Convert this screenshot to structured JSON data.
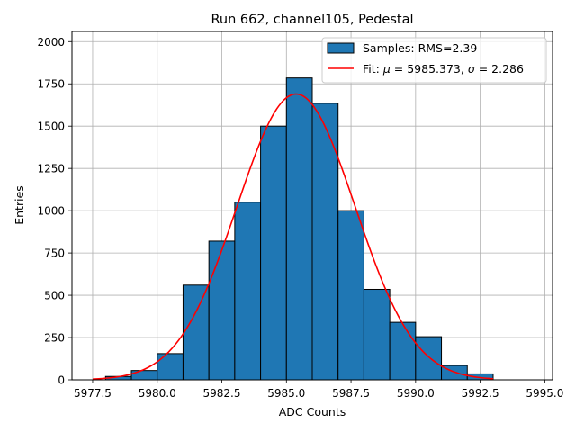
{
  "chart_data": {
    "type": "bar",
    "title": "Run 662, channel105, Pedestal",
    "xlabel": "ADC Counts",
    "ylabel": "Entries",
    "xlim": [
      5976.7,
      5995.3
    ],
    "ylim": [
      0,
      2060
    ],
    "grid": true,
    "legend_position": "upper right",
    "x_ticks": [
      "5977.5",
      "5980.0",
      "5982.5",
      "5985.0",
      "5987.5",
      "5990.0",
      "5992.5",
      "5995.0"
    ],
    "y_ticks": [
      "0",
      "250",
      "500",
      "750",
      "1000",
      "1250",
      "1500",
      "1750",
      "2000"
    ],
    "histogram": {
      "name": "Samples: RMS=2.39",
      "color": "#1f77b4",
      "edgecolor": "#000000",
      "bin_edges": [
        5978.0,
        5979.0,
        5980.0,
        5981.0,
        5982.0,
        5983.0,
        5984.0,
        5985.0,
        5986.0,
        5987.0,
        5988.0,
        5989.0,
        5990.0,
        5991.0,
        5992.0,
        5993.0
      ],
      "counts": [
        20,
        55,
        155,
        560,
        820,
        1050,
        1500,
        1785,
        1635,
        1000,
        535,
        340,
        255,
        85,
        35
      ]
    },
    "fit": {
      "name_prefix": "Fit: ",
      "mu_symbol": "μ",
      "mu_value": " = 5985.373, ",
      "sigma_symbol": "σ",
      "sigma_value": " = 2.286",
      "color": "#ff0000",
      "mu": 5985.373,
      "sigma": 2.286,
      "amplitude": 1690,
      "x_range": [
        5977.5,
        5993.0
      ]
    }
  }
}
